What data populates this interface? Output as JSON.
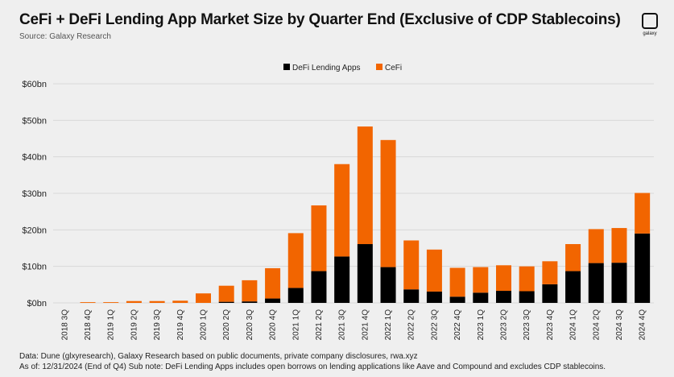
{
  "header": {
    "title": "CeFi + DeFi Lending App Market Size by Quarter End (Exclusive of CDP Stablecoins)",
    "source": "Source: Galaxy Research",
    "logo_text": "galaxy"
  },
  "footer": {
    "data_note": "Data: Dune (glxyresearch), Galaxy Research based on public documents, private company disclosures, rwa.xyz",
    "as_of_note": "As of: 12/31/2024 (End of Q4)   Sub note: DeFi Lending Apps includes open borrows on lending applications like Aave and Compound and excludes CDP stablecoins."
  },
  "chart_data": {
    "type": "bar",
    "stacked": true,
    "title": "CeFi + DeFi Lending App Market Size by Quarter End (Exclusive of CDP Stablecoins)",
    "ylim": [
      0,
      60
    ],
    "yticks": [
      "$0bn",
      "$10bn",
      "$20bn",
      "$30bn",
      "$40bn",
      "$50bn",
      "$60bn"
    ],
    "grid": true,
    "legend_placement": "top-center",
    "categories": [
      "2018 3Q",
      "2018 4Q",
      "2019 1Q",
      "2019 2Q",
      "2019 3Q",
      "2019 4Q",
      "2020 1Q",
      "2020 2Q",
      "2020 3Q",
      "2020 4Q",
      "2021 1Q",
      "2021 2Q",
      "2021 3Q",
      "2021 4Q",
      "2022 1Q",
      "2022 2Q",
      "2022 3Q",
      "2022 4Q",
      "2023 1Q",
      "2023 2Q",
      "2023 3Q",
      "2023 4Q",
      "2024 1Q",
      "2024 2Q",
      "2024 3Q",
      "2024 4Q"
    ],
    "series": [
      {
        "name": "DeFi Lending Apps",
        "color": "#000000",
        "values": [
          0,
          0,
          0,
          0,
          0,
          0,
          0,
          0.3,
          0.4,
          1.2,
          4.1,
          8.7,
          12.7,
          16.1,
          9.8,
          3.7,
          3.1,
          1.7,
          2.8,
          3.3,
          3.2,
          5.1,
          8.7,
          10.9,
          11.0,
          19.0
        ]
      },
      {
        "name": "CeFi",
        "color": "#F26500",
        "values": [
          0,
          0.2,
          0.2,
          0.5,
          0.5,
          0.6,
          2.6,
          4.4,
          5.8,
          8.3,
          15.0,
          18.0,
          25.3,
          32.2,
          34.8,
          13.4,
          11.5,
          7.9,
          7.0,
          7.0,
          6.8,
          6.3,
          7.4,
          9.3,
          9.5,
          11.1
        ]
      }
    ]
  }
}
